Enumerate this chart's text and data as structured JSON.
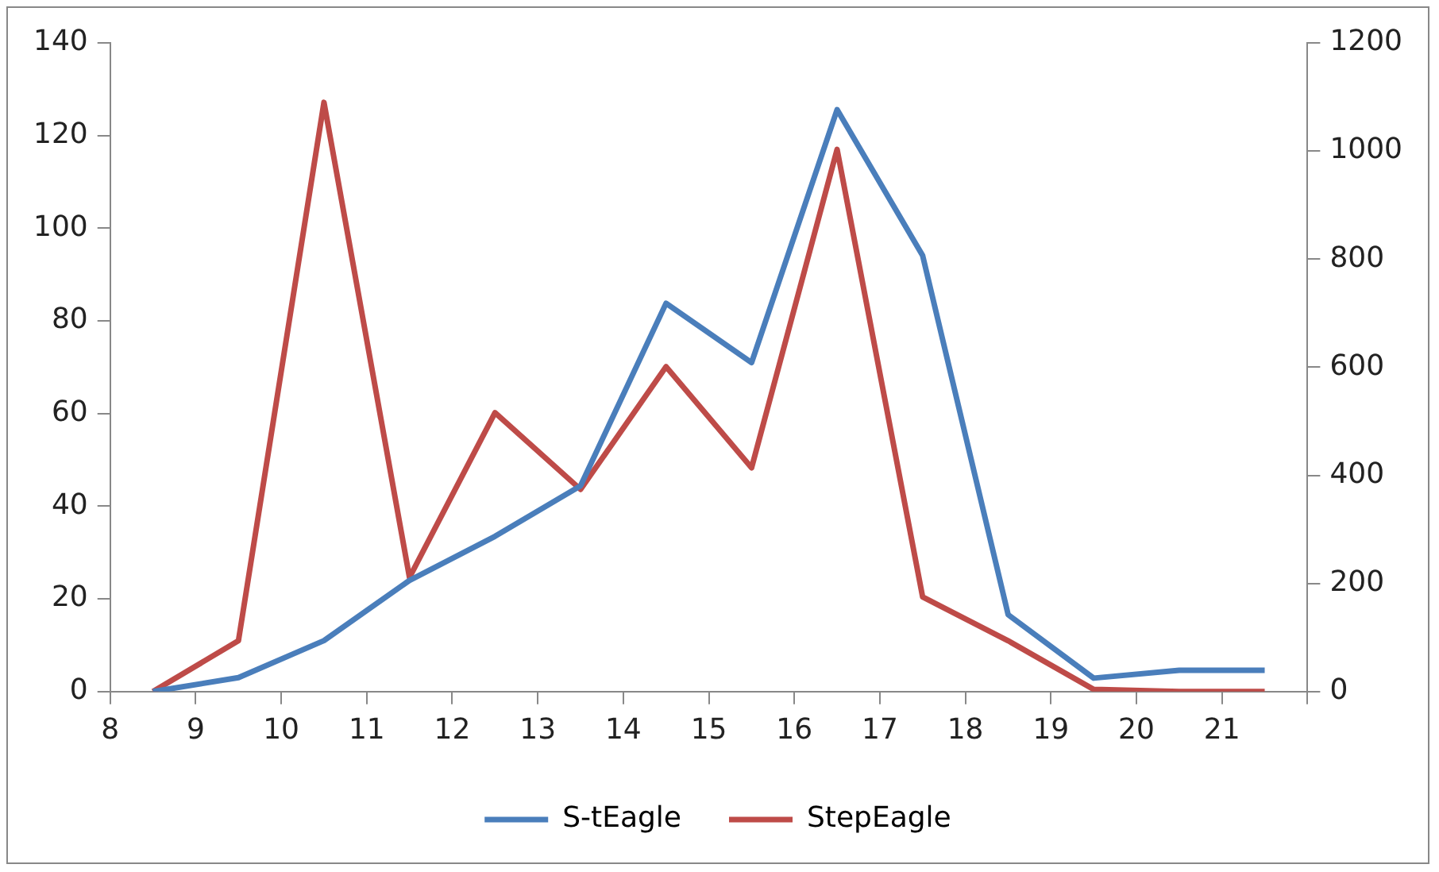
{
  "chart_data": {
    "type": "line",
    "x": [
      8.5,
      9.5,
      10.5,
      11.5,
      12.5,
      13.5,
      14.5,
      15.5,
      16.5,
      17.5,
      18.5,
      19.5,
      20.5,
      21.5
    ],
    "series": [
      {
        "name": "S-tEagle",
        "color": "#4a7ebb",
        "values": [
          0,
          3,
          11,
          24,
          33.5,
          44.4,
          83.8,
          71,
          125.6,
          94.1,
          16.6,
          2.9,
          4.6,
          4.6
        ]
      },
      {
        "name": "StepEagle",
        "color": "#be4b48",
        "axis": "y2",
        "values": [
          0,
          94,
          1090,
          211,
          516,
          374,
          601,
          414,
          1003,
          175,
          94,
          4,
          0,
          0
        ]
      }
    ],
    "xlim": [
      8,
      22
    ],
    "xticks": [
      8,
      9,
      10,
      11,
      12,
      13,
      14,
      15,
      16,
      17,
      18,
      19,
      20,
      21,
      {
        "value": 22,
        "label": null
      }
    ],
    "ylim": [
      0,
      140
    ],
    "yticks": [
      0,
      20,
      40,
      60,
      80,
      100,
      120,
      140
    ],
    "y2lim": [
      0,
      1200
    ],
    "y2ticks": [
      0,
      200,
      400,
      600,
      800,
      1000,
      1200
    ],
    "grid": false,
    "legend": "bottom",
    "marker": "none",
    "line_style": "solid"
  }
}
